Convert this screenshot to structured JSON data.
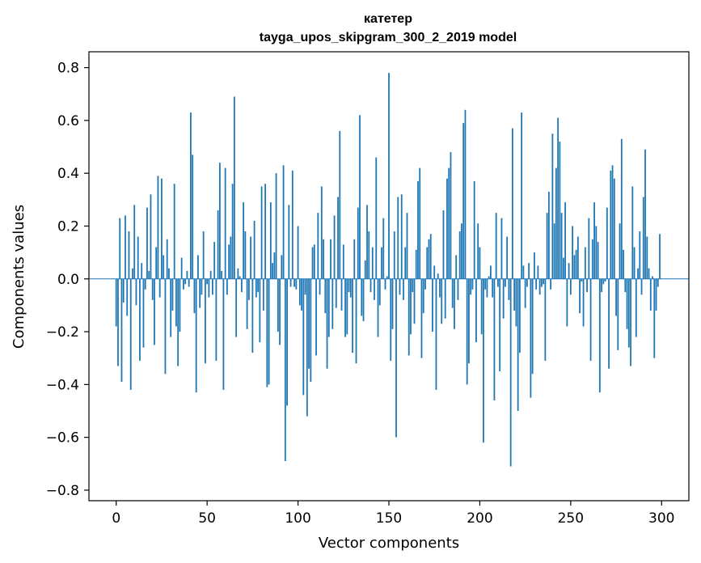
{
  "chart_data": {
    "type": "bar",
    "title": "катетер",
    "subtitle": "tayga_upos_skipgram_300_2_2019 model",
    "xlabel": "Vector components",
    "ylabel": "Components values",
    "xlim": [
      -15,
      315
    ],
    "ylim": [
      -0.84,
      0.86
    ],
    "xticks": [
      0,
      50,
      100,
      150,
      200,
      250,
      300
    ],
    "xtick_labels": [
      "0",
      "50",
      "100",
      "150",
      "200",
      "250",
      "300"
    ],
    "yticks": [
      -0.8,
      -0.6,
      -0.4,
      -0.2,
      0.0,
      0.2,
      0.4,
      0.6,
      0.8
    ],
    "ytick_labels": [
      "−0.8",
      "−0.6",
      "−0.4",
      "−0.2",
      "0.0",
      "0.2",
      "0.4",
      "0.6",
      "0.8"
    ],
    "bar_color": "#1f77b4",
    "grid": false,
    "x_start": 0,
    "values": [
      -0.18,
      -0.33,
      0.23,
      -0.39,
      -0.09,
      0.24,
      -0.14,
      0.18,
      -0.42,
      0.04,
      0.28,
      -0.1,
      0.16,
      -0.31,
      0.06,
      -0.26,
      -0.04,
      0.27,
      0.03,
      0.32,
      -0.08,
      -0.25,
      0.12,
      0.39,
      -0.07,
      0.38,
      0.09,
      -0.36,
      0.15,
      0.04,
      -0.22,
      -0.12,
      0.36,
      -0.18,
      -0.33,
      -0.2,
      0.08,
      -0.04,
      -0.02,
      0.03,
      -0.03,
      0.63,
      0.47,
      -0.13,
      -0.43,
      0.09,
      -0.11,
      -0.06,
      0.18,
      -0.32,
      -0.02,
      -0.07,
      0.03,
      -0.06,
      0.14,
      -0.31,
      0.26,
      0.44,
      0.03,
      -0.42,
      0.42,
      -0.06,
      0.13,
      0.16,
      0.36,
      0.69,
      -0.22,
      0.04,
      0.01,
      -0.05,
      0.29,
      0.18,
      -0.19,
      -0.08,
      0.16,
      -0.28,
      0.22,
      -0.07,
      -0.05,
      -0.24,
      0.35,
      -0.12,
      0.36,
      -0.41,
      -0.4,
      0.29,
      0.06,
      0.1,
      0.4,
      -0.2,
      -0.25,
      0.09,
      0.43,
      -0.69,
      -0.48,
      0.28,
      -0.03,
      0.41,
      -0.03,
      -0.04,
      0.2,
      -0.1,
      -0.12,
      -0.44,
      -0.06,
      -0.52,
      -0.34,
      -0.39,
      0.12,
      0.13,
      -0.29,
      0.25,
      -0.06,
      0.35,
      0.15,
      -0.13,
      -0.34,
      -0.22,
      0.15,
      -0.19,
      0.24,
      -0.11,
      0.31,
      0.56,
      -0.12,
      0.13,
      -0.22,
      -0.21,
      -0.05,
      -0.07,
      -0.28,
      0.15,
      -0.32,
      0.27,
      0.62,
      -0.14,
      -0.16,
      0.07,
      0.28,
      0.18,
      -0.05,
      0.12,
      -0.08,
      0.46,
      -0.22,
      -0.1,
      0.12,
      0.23,
      -0.04,
      0.01,
      0.78,
      -0.31,
      -0.19,
      0.18,
      -0.6,
      0.31,
      -0.06,
      0.32,
      -0.08,
      0.12,
      0.25,
      -0.29,
      -0.21,
      -0.05,
      -0.17,
      0.11,
      0.37,
      0.42,
      -0.3,
      -0.13,
      -0.04,
      0.12,
      0.15,
      0.17,
      -0.2,
      0.05,
      -0.42,
      0.02,
      -0.07,
      -0.17,
      0.26,
      -0.15,
      0.38,
      0.42,
      0.48,
      -0.11,
      -0.19,
      0.09,
      -0.08,
      0.18,
      0.21,
      0.59,
      0.64,
      -0.4,
      -0.32,
      -0.06,
      -0.04,
      0.37,
      -0.24,
      0.21,
      0.12,
      -0.21,
      -0.62,
      -0.04,
      -0.07,
      0.01,
      0.05,
      -0.07,
      -0.46,
      0.25,
      -0.03,
      -0.35,
      0.23,
      -0.15,
      -0.03,
      0.16,
      -0.08,
      -0.71,
      0.57,
      -0.12,
      -0.18,
      -0.5,
      -0.28,
      0.63,
      0.05,
      -0.11,
      -0.03,
      0.06,
      -0.45,
      -0.36,
      0.1,
      -0.04,
      0.05,
      -0.06,
      -0.03,
      -0.02,
      -0.31,
      0.25,
      0.33,
      -0.04,
      0.55,
      0.21,
      0.42,
      0.61,
      0.52,
      0.25,
      0.08,
      0.29,
      -0.18,
      0.06,
      -0.06,
      0.2,
      0.09,
      0.11,
      0.16,
      -0.13,
      -0.01,
      -0.18,
      0.12,
      -0.05,
      0.23,
      -0.31,
      0.15,
      0.29,
      0.2,
      0.14,
      -0.43,
      -0.05,
      -0.02,
      -0.01,
      0.27,
      -0.34,
      0.41,
      0.43,
      0.38,
      -0.14,
      -0.27,
      0.21,
      0.53,
      0.11,
      -0.05,
      -0.19,
      -0.26,
      -0.33,
      0.35,
      0.12,
      -0.22,
      0.04,
      0.18,
      -0.06,
      0.31,
      0.49,
      0.16,
      0.04,
      -0.12,
      0.01,
      -0.3,
      -0.12,
      -0.03,
      0.17
    ]
  }
}
